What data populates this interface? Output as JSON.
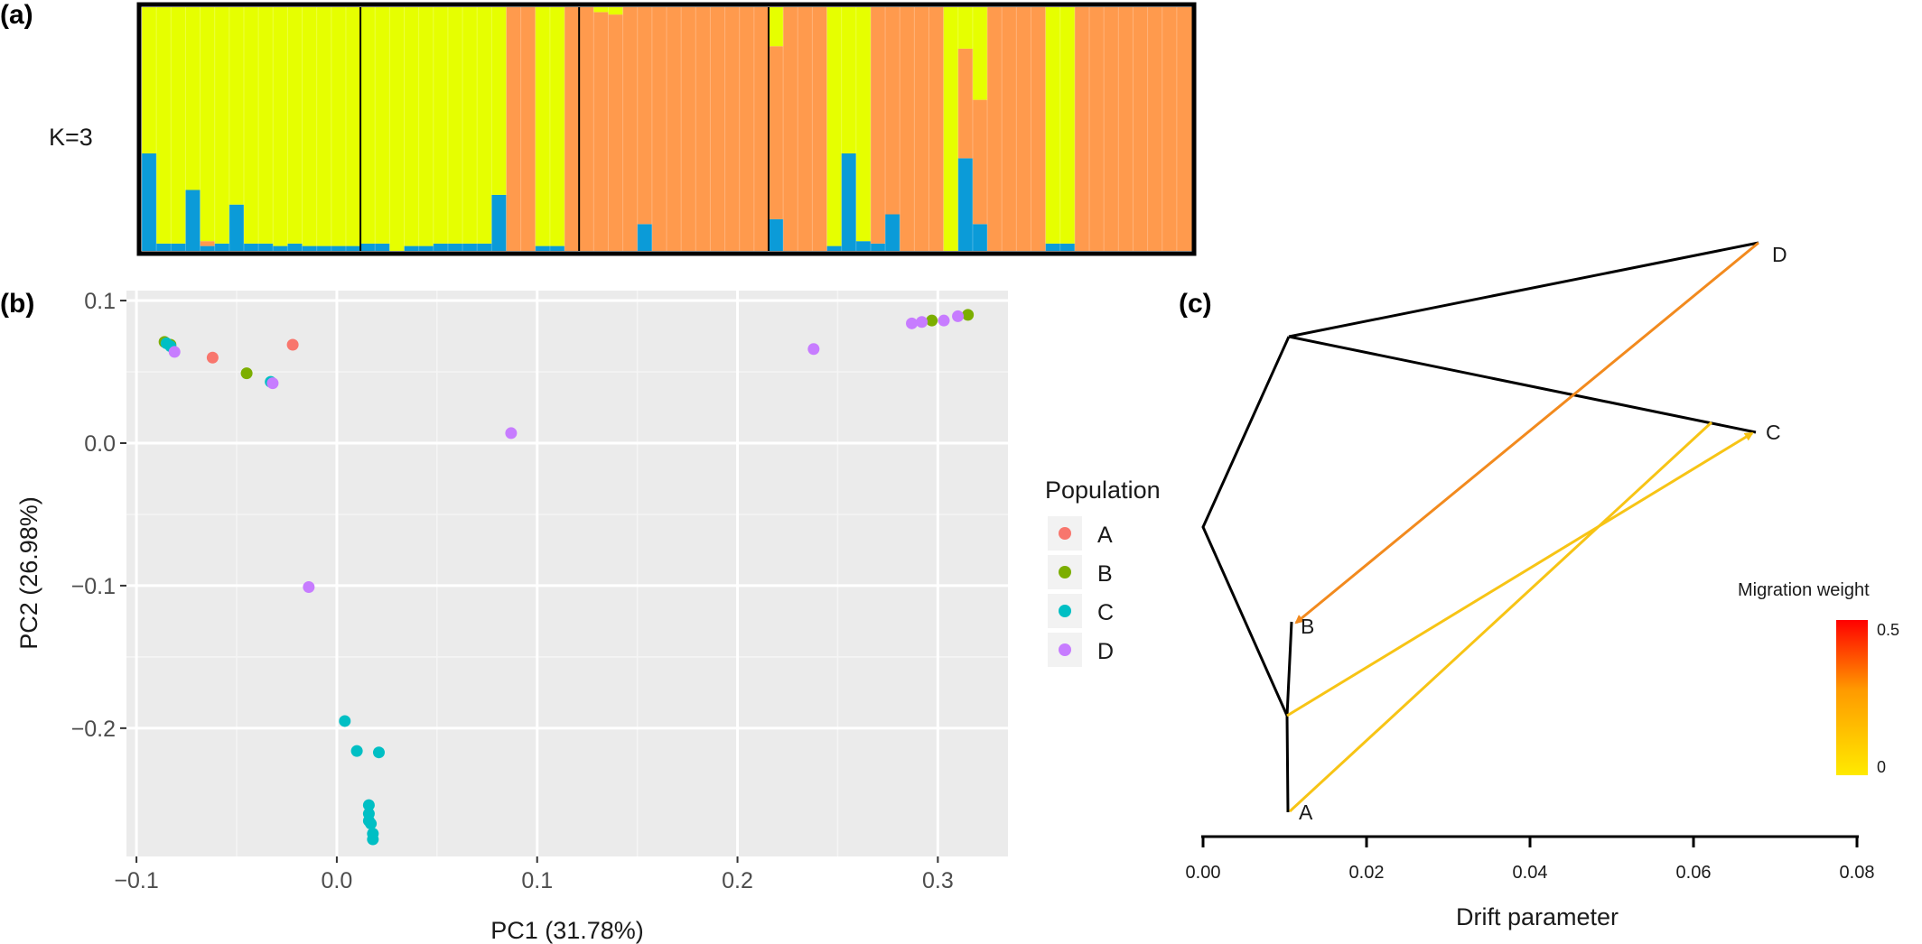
{
  "panels": {
    "a": "(a)",
    "b": "(b)",
    "c": "(c)"
  },
  "colors": {
    "cluster_yellow": "#e6ff00",
    "cluster_orange": "#ff9a4d",
    "cluster_blue": "#0b9bd8",
    "pop_A": "#f8766d",
    "pop_B": "#7cae00",
    "pop_C": "#00bfc4",
    "pop_D": "#c77cff",
    "panel_bg": "#ebebeb",
    "tree": "#000000",
    "migration_low": "#ffea00",
    "migration_high": "#ff0000"
  },
  "chart_data": [
    {
      "panel": "(a)",
      "type": "bar",
      "subtype": "stacked-admixture",
      "label": "K=3",
      "series_order": [
        "blue",
        "orange",
        "yellow"
      ],
      "individuals": [
        [
          0.4,
          0.0,
          0.6
        ],
        [
          0.03,
          0.0,
          0.97
        ],
        [
          0.03,
          0.0,
          0.97
        ],
        [
          0.25,
          0.0,
          0.75
        ],
        [
          0.02,
          0.02,
          0.96
        ],
        [
          0.03,
          0.0,
          0.97
        ],
        [
          0.19,
          0.0,
          0.81
        ],
        [
          0.03,
          0.0,
          0.97
        ],
        [
          0.03,
          0.0,
          0.97
        ],
        [
          0.02,
          0.0,
          0.98
        ],
        [
          0.03,
          0.0,
          0.97
        ],
        [
          0.02,
          0.0,
          0.98
        ],
        [
          0.02,
          0.0,
          0.98
        ],
        [
          0.02,
          0.0,
          0.98
        ],
        [
          0.02,
          0.0,
          0.98
        ],
        [
          0.03,
          0.0,
          0.97
        ],
        [
          0.03,
          0.0,
          0.97
        ],
        [
          0.0,
          0.0,
          1.0
        ],
        [
          0.02,
          0.0,
          0.98
        ],
        [
          0.02,
          0.0,
          0.98
        ],
        [
          0.03,
          0.0,
          0.97
        ],
        [
          0.03,
          0.0,
          0.97
        ],
        [
          0.03,
          0.0,
          0.97
        ],
        [
          0.03,
          0.0,
          0.97
        ],
        [
          0.23,
          0.0,
          0.77
        ],
        [
          0.0,
          1.0,
          0.0
        ],
        [
          0.0,
          1.0,
          0.0
        ],
        [
          0.02,
          0.0,
          0.98
        ],
        [
          0.02,
          0.0,
          0.98
        ],
        [
          0.0,
          1.0,
          0.0
        ],
        [
          0.0,
          1.0,
          0.0
        ],
        [
          0.0,
          0.98,
          0.02
        ],
        [
          0.0,
          0.97,
          0.03
        ],
        [
          0.0,
          1.0,
          0.0
        ],
        [
          0.11,
          0.89,
          0.0
        ],
        [
          0.0,
          1.0,
          0.0
        ],
        [
          0.0,
          1.0,
          0.0
        ],
        [
          0.0,
          1.0,
          0.0
        ],
        [
          0.0,
          1.0,
          0.0
        ],
        [
          0.0,
          1.0,
          0.0
        ],
        [
          0.0,
          1.0,
          0.0
        ],
        [
          0.0,
          1.0,
          0.0
        ],
        [
          0.0,
          1.0,
          0.0
        ],
        [
          0.13,
          0.71,
          0.16
        ],
        [
          0.0,
          1.0,
          0.0
        ],
        [
          0.0,
          1.0,
          0.0
        ],
        [
          0.0,
          1.0,
          0.0
        ],
        [
          0.02,
          0.0,
          0.98
        ],
        [
          0.4,
          0.0,
          0.6
        ],
        [
          0.04,
          0.0,
          0.96
        ],
        [
          0.03,
          0.97,
          0.0
        ],
        [
          0.15,
          0.85,
          0.0
        ],
        [
          0.0,
          1.0,
          0.0
        ],
        [
          0.0,
          1.0,
          0.0
        ],
        [
          0.0,
          1.0,
          0.0
        ],
        [
          0.0,
          0.0,
          1.0
        ],
        [
          0.38,
          0.45,
          0.17
        ],
        [
          0.11,
          0.51,
          0.38
        ],
        [
          0.0,
          1.0,
          0.0
        ],
        [
          0.0,
          1.0,
          0.0
        ],
        [
          0.0,
          1.0,
          0.0
        ],
        [
          0.0,
          1.0,
          0.0
        ],
        [
          0.03,
          0.0,
          0.97
        ],
        [
          0.03,
          0.0,
          0.97
        ],
        [
          0.0,
          1.0,
          0.0
        ],
        [
          0.0,
          1.0,
          0.0
        ],
        [
          0.0,
          1.0,
          0.0
        ],
        [
          0.0,
          1.0,
          0.0
        ],
        [
          0.0,
          1.0,
          0.0
        ],
        [
          0.0,
          1.0,
          0.0
        ],
        [
          0.0,
          1.0,
          0.0
        ],
        [
          0.0,
          1.0,
          0.0
        ]
      ],
      "group_boundaries_after": [
        15,
        30,
        43
      ]
    },
    {
      "panel": "(b)",
      "type": "scatter",
      "xlabel": "PC1 (31.78%)",
      "ylabel": "PC2 (26.98%)",
      "xlim": [
        -0.105,
        0.335
      ],
      "ylim": [
        -0.29,
        0.107
      ],
      "xticks": [
        -0.1,
        0.0,
        0.1,
        0.2,
        0.3
      ],
      "xtick_labels": [
        "−0.1",
        "0.0",
        "0.1",
        "0.2",
        "0.3"
      ],
      "yticks": [
        0.1,
        0.0,
        -0.1,
        -0.2
      ],
      "ytick_labels": [
        "0.1",
        "0.0",
        "−0.1",
        "−0.2"
      ],
      "legend_title": "Population",
      "legend_position": "right",
      "series": [
        {
          "name": "A",
          "points": [
            [
              -0.062,
              0.06
            ],
            [
              -0.022,
              0.069
            ]
          ]
        },
        {
          "name": "B",
          "points": [
            [
              -0.086,
              0.071
            ],
            [
              -0.083,
              0.069
            ],
            [
              -0.045,
              0.049
            ],
            [
              0.297,
              0.086
            ],
            [
              0.315,
              0.09
            ]
          ]
        },
        {
          "name": "C",
          "points": [
            [
              -0.085,
              0.07
            ],
            [
              -0.083,
              0.068
            ],
            [
              -0.033,
              0.043
            ],
            [
              0.004,
              -0.195
            ],
            [
              0.01,
              -0.216
            ],
            [
              0.021,
              -0.217
            ],
            [
              0.016,
              -0.254
            ],
            [
              0.016,
              -0.26
            ],
            [
              0.016,
              -0.265
            ],
            [
              0.017,
              -0.267
            ],
            [
              0.018,
              -0.274
            ],
            [
              0.018,
              -0.278
            ]
          ]
        },
        {
          "name": "D",
          "points": [
            [
              -0.081,
              0.064
            ],
            [
              -0.032,
              0.042
            ],
            [
              0.087,
              0.007
            ],
            [
              -0.014,
              -0.101
            ],
            [
              0.238,
              0.066
            ],
            [
              0.287,
              0.084
            ],
            [
              0.292,
              0.085
            ],
            [
              0.303,
              0.086
            ],
            [
              0.31,
              0.089
            ]
          ]
        }
      ]
    },
    {
      "panel": "(c)",
      "type": "tree",
      "xlabel": "Drift parameter",
      "xlim": [
        0.0,
        0.08
      ],
      "xticks": [
        0.0,
        0.02,
        0.04,
        0.06,
        0.08
      ],
      "xtick_labels": [
        "0.00",
        "0.02",
        "0.04",
        "0.06",
        "0.08"
      ],
      "nodes": [
        {
          "id": "root",
          "drift": 0.0
        },
        {
          "id": "n1",
          "drift": 0.0105
        },
        {
          "id": "n2",
          "drift": 0.0105
        },
        {
          "id": "A",
          "label": "A",
          "drift": 0.0105
        },
        {
          "id": "B",
          "label": "B",
          "drift": 0.011
        },
        {
          "id": "C",
          "label": "C",
          "drift": 0.0675
        },
        {
          "id": "D",
          "label": "D",
          "drift": 0.068
        }
      ],
      "migration_edges": [
        {
          "from": "D",
          "to": "B",
          "weight": 0.3
        },
        {
          "from": "n2",
          "to": "C",
          "weight": 0.05
        },
        {
          "from": "A",
          "to": "C-branch",
          "weight": 0.05
        }
      ],
      "legend_title": "Migration weight",
      "legend_ticks": [
        "0.5",
        "0"
      ]
    }
  ]
}
